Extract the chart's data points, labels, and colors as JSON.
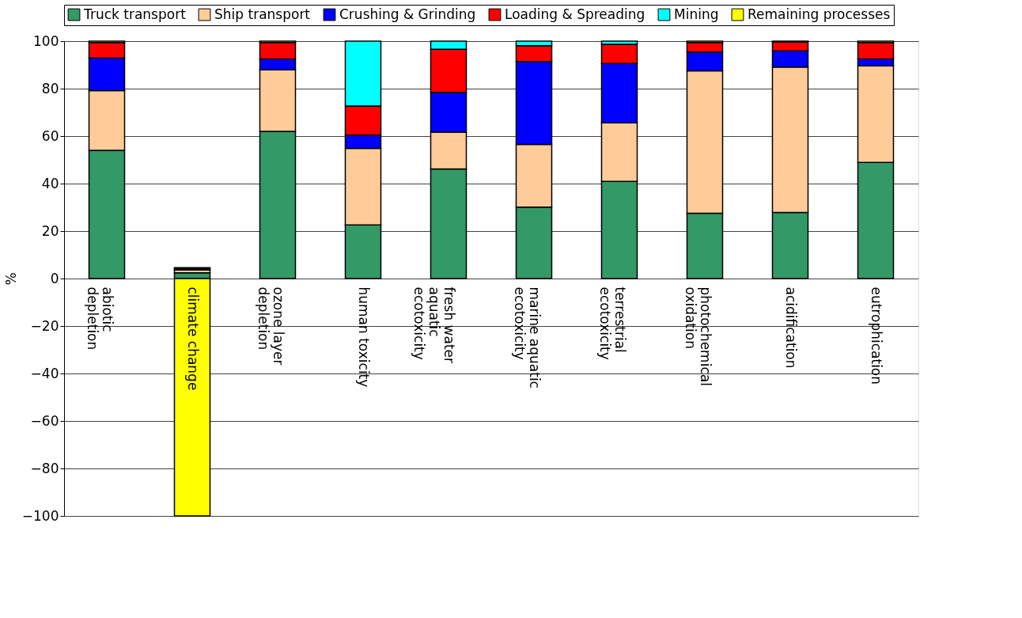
{
  "chart_data": {
    "type": "bar",
    "stacked": true,
    "ylabel": "%",
    "categories": [
      "abiotic\ndepletion",
      "climate change",
      "ozone layer\ndepletion",
      "human toxicity",
      "fresh water\naquatic\necotoxicity",
      "marine aquatic\necotoxicity",
      "terrestrial\necotoxicity",
      "photochemical\noxidation",
      "acidification",
      "eutrophication"
    ],
    "series": [
      {
        "name": "Truck transport",
        "color": "#339966",
        "values": [
          54,
          2.4,
          62,
          22.6,
          46.2,
          30.1,
          40.9,
          27.5,
          27.8,
          48.9
        ]
      },
      {
        "name": "Ship transport",
        "color": "#ffcc99",
        "values": [
          25.2,
          1.2,
          25.9,
          32.2,
          15.5,
          26.4,
          24.7,
          60,
          61.3,
          40.7
        ]
      },
      {
        "name": "Crushing & Grinding",
        "color": "#0000ff",
        "values": [
          13.7,
          0.6,
          4.6,
          5.6,
          16.7,
          34.9,
          25,
          7.9,
          6.8,
          2.9
        ]
      },
      {
        "name": "Loading & Spreading",
        "color": "#ff0000",
        "values": [
          6.5,
          0.4,
          6.9,
          12.3,
          18.2,
          6.7,
          8.1,
          4,
          3.8,
          6.9
        ]
      },
      {
        "name": "Mining",
        "color": "#00ffff",
        "values": [
          null,
          null,
          null,
          27.3,
          3.4,
          1.9,
          1.3,
          null,
          null,
          null
        ]
      },
      {
        "name": "Remaining processes",
        "color": "#ffff00",
        "values": [
          0.6,
          -100,
          0.6,
          null,
          null,
          null,
          null,
          0.6,
          0.3,
          0.6
        ]
      }
    ],
    "ylim": [
      -100,
      100
    ],
    "yticks": [
      -100,
      -80,
      -60,
      -40,
      -20,
      0,
      20,
      40,
      60,
      80,
      100
    ],
    "grid": "y",
    "legend": "top"
  }
}
